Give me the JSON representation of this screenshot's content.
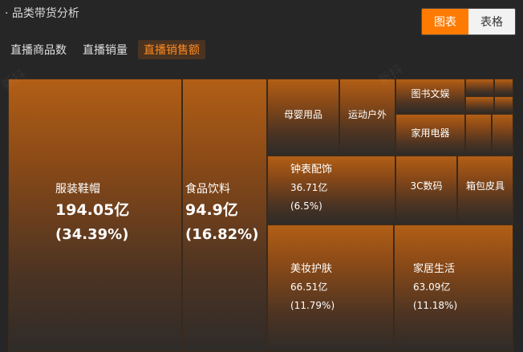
{
  "header": {
    "title": "· 品类带货分析",
    "view_toggle": {
      "chart_label": "图表",
      "table_label": "表格"
    }
  },
  "metric_tabs": [
    {
      "label": "直播商品数",
      "active": false
    },
    {
      "label": "直播销量",
      "active": false
    },
    {
      "label": "直播销售额",
      "active": true
    }
  ],
  "colors": {
    "accent": "#ff7a00",
    "tile_top": "#b25f16",
    "tile_bottom": "#2e2b29",
    "background": "#262626"
  },
  "chart_data": {
    "type": "treemap",
    "metric": "直播销售额",
    "items": [
      {
        "name": "服装鞋帽",
        "value_label": "194.05亿",
        "percent_label": "(34.39%)",
        "value": 194.05,
        "percent": 34.39
      },
      {
        "name": "食品饮料",
        "value_label": "94.9亿",
        "percent_label": "(16.82%)",
        "value": 94.9,
        "percent": 16.82
      },
      {
        "name": "美妆护肤",
        "value_label": "66.51亿",
        "percent_label": "(11.79%)",
        "value": 66.51,
        "percent": 11.79
      },
      {
        "name": "家居生活",
        "value_label": "63.09亿",
        "percent_label": "(11.18%)",
        "value": 63.09,
        "percent": 11.18
      },
      {
        "name": "钟表配饰",
        "value_label": "36.71亿",
        "percent_label": "(6.5%)",
        "value": 36.71,
        "percent": 6.5
      },
      {
        "name": "母婴用品"
      },
      {
        "name": "运动户外"
      },
      {
        "name": "图书文娱"
      },
      {
        "name": "家用电器"
      },
      {
        "name": "3C数码"
      },
      {
        "name": "箱包皮具"
      },
      {
        "name": ""
      },
      {
        "name": ""
      },
      {
        "name": ""
      },
      {
        "name": ""
      },
      {
        "name": ""
      },
      {
        "name": ""
      }
    ]
  }
}
